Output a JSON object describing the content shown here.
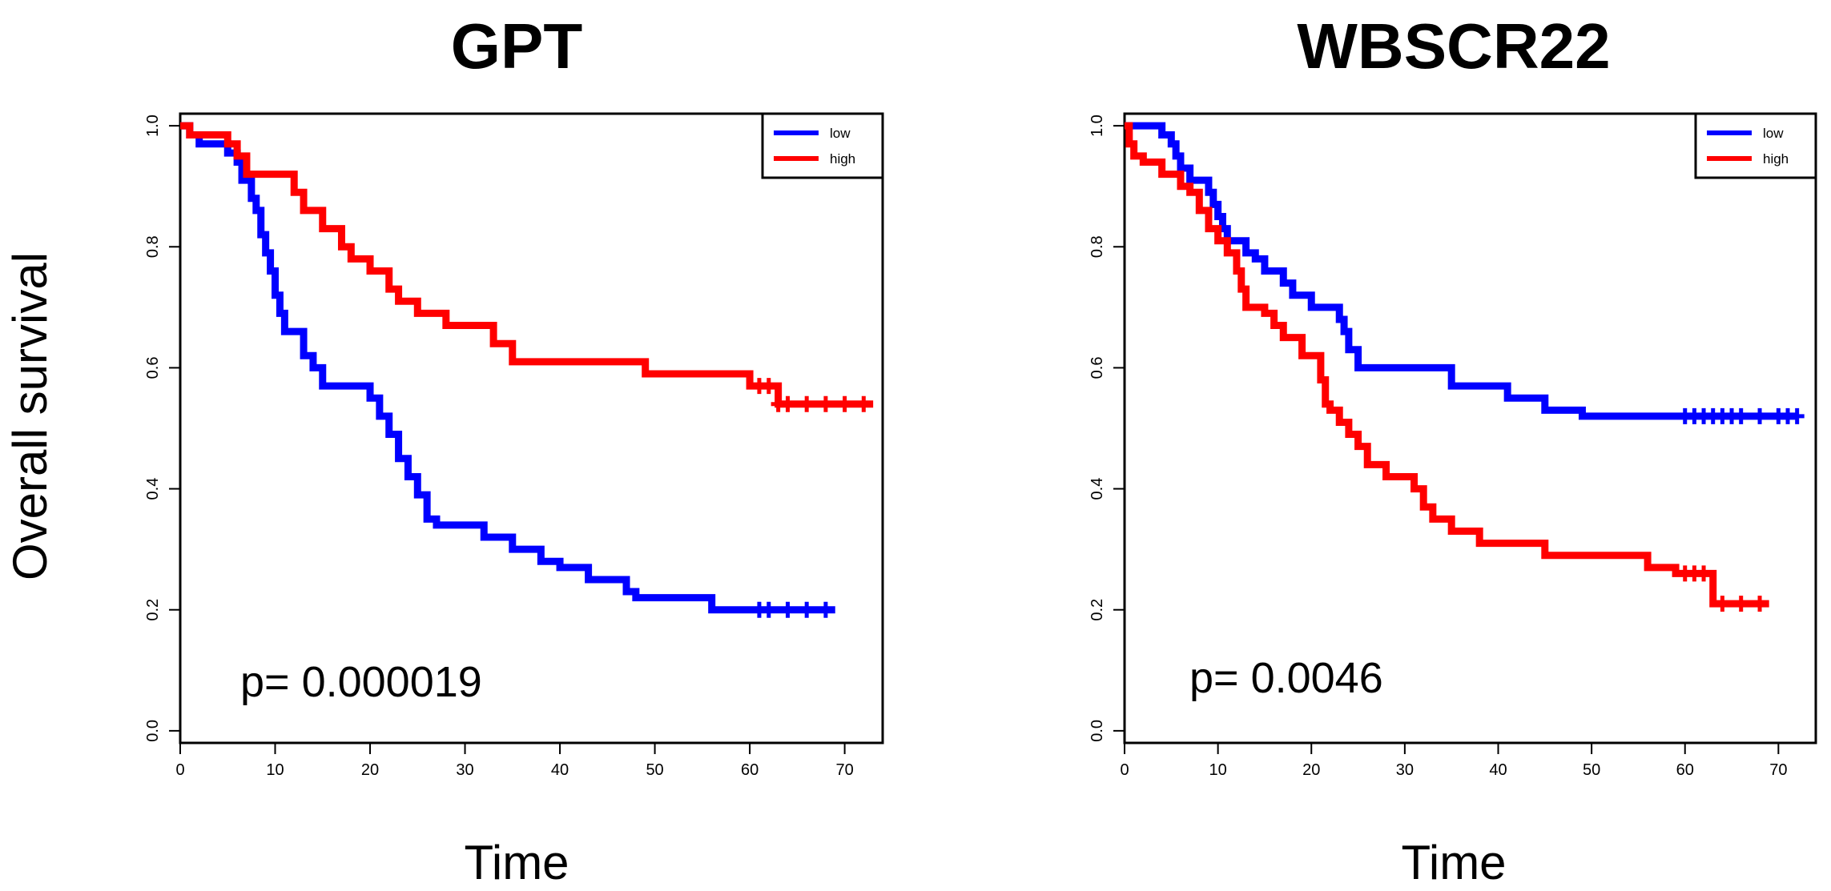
{
  "ylabel": "Overall survival",
  "chart_data": [
    {
      "type": "line",
      "subtype": "kaplan-meier",
      "title": "GPT",
      "xlabel": "Time",
      "ylabel": "Overall survival",
      "xlim": [
        0,
        74
      ],
      "ylim": [
        -0.02,
        1.02
      ],
      "xticks": [
        0,
        10,
        20,
        30,
        40,
        50,
        60,
        70
      ],
      "yticks": [
        0.0,
        0.2,
        0.4,
        0.6,
        0.8,
        1.0
      ],
      "annotation": "p= 0.000019",
      "legend_position": "top-right",
      "series": [
        {
          "name": "low",
          "color": "#0000ff",
          "steps": [
            [
              0,
              1.0
            ],
            [
              1,
              0.985
            ],
            [
              2,
              0.97
            ],
            [
              5,
              0.955
            ],
            [
              6,
              0.94
            ],
            [
              6.5,
              0.91
            ],
            [
              7.5,
              0.88
            ],
            [
              8,
              0.86
            ],
            [
              8.5,
              0.82
            ],
            [
              9,
              0.79
            ],
            [
              9.5,
              0.76
            ],
            [
              10,
              0.72
            ],
            [
              10.5,
              0.69
            ],
            [
              11,
              0.66
            ],
            [
              13,
              0.62
            ],
            [
              14,
              0.6
            ],
            [
              15,
              0.57
            ],
            [
              20,
              0.55
            ],
            [
              21,
              0.52
            ],
            [
              22,
              0.49
            ],
            [
              23,
              0.45
            ],
            [
              24,
              0.42
            ],
            [
              25,
              0.39
            ],
            [
              26,
              0.35
            ],
            [
              27,
              0.34
            ],
            [
              32,
              0.32
            ],
            [
              35,
              0.3
            ],
            [
              38,
              0.28
            ],
            [
              40,
              0.27
            ],
            [
              43,
              0.25
            ],
            [
              47,
              0.23
            ],
            [
              48,
              0.22
            ],
            [
              56,
              0.2
            ],
            [
              69,
              0.2
            ]
          ],
          "censors": [
            61,
            62,
            64,
            66,
            68
          ]
        },
        {
          "name": "high",
          "color": "#ff0000",
          "steps": [
            [
              0,
              1.0
            ],
            [
              1,
              0.985
            ],
            [
              5,
              0.97
            ],
            [
              6,
              0.95
            ],
            [
              7,
              0.92
            ],
            [
              12,
              0.89
            ],
            [
              13,
              0.86
            ],
            [
              15,
              0.83
            ],
            [
              17,
              0.8
            ],
            [
              18,
              0.78
            ],
            [
              20,
              0.76
            ],
            [
              22,
              0.73
            ],
            [
              23,
              0.71
            ],
            [
              25,
              0.69
            ],
            [
              28,
              0.67
            ],
            [
              33,
              0.64
            ],
            [
              35,
              0.61
            ],
            [
              49,
              0.59
            ],
            [
              60,
              0.57
            ],
            [
              63,
              0.54
            ],
            [
              73,
              0.54
            ]
          ],
          "censors": [
            61,
            62,
            63,
            64,
            66,
            68,
            70,
            72
          ]
        }
      ]
    },
    {
      "type": "line",
      "subtype": "kaplan-meier",
      "title": "WBSCR22",
      "xlabel": "Time",
      "ylabel": "",
      "xlim": [
        0,
        74
      ],
      "ylim": [
        -0.02,
        1.02
      ],
      "xticks": [
        0,
        10,
        20,
        30,
        40,
        50,
        60,
        70
      ],
      "yticks": [
        0.0,
        0.2,
        0.4,
        0.6,
        0.8,
        1.0
      ],
      "annotation": "p= 0.0046",
      "legend_position": "top-right",
      "series": [
        {
          "name": "low",
          "color": "#0000ff",
          "steps": [
            [
              0,
              1.0
            ],
            [
              4,
              0.985
            ],
            [
              5,
              0.97
            ],
            [
              5.5,
              0.95
            ],
            [
              6,
              0.93
            ],
            [
              7,
              0.91
            ],
            [
              9,
              0.89
            ],
            [
              9.5,
              0.87
            ],
            [
              10,
              0.85
            ],
            [
              10.5,
              0.83
            ],
            [
              11,
              0.81
            ],
            [
              13,
              0.79
            ],
            [
              14,
              0.78
            ],
            [
              15,
              0.76
            ],
            [
              17,
              0.74
            ],
            [
              18,
              0.72
            ],
            [
              20,
              0.7
            ],
            [
              23,
              0.68
            ],
            [
              23.5,
              0.66
            ],
            [
              24,
              0.63
            ],
            [
              25,
              0.6
            ],
            [
              35,
              0.57
            ],
            [
              41,
              0.55
            ],
            [
              45,
              0.53
            ],
            [
              49,
              0.52
            ],
            [
              72,
              0.52
            ]
          ],
          "censors": [
            60,
            61,
            62,
            63,
            64,
            65,
            66,
            68,
            70,
            71,
            72
          ]
        },
        {
          "name": "high",
          "color": "#ff0000",
          "steps": [
            [
              0,
              1.0
            ],
            [
              0.5,
              0.97
            ],
            [
              1,
              0.95
            ],
            [
              2,
              0.94
            ],
            [
              4,
              0.92
            ],
            [
              6,
              0.9
            ],
            [
              7,
              0.89
            ],
            [
              8,
              0.86
            ],
            [
              9,
              0.83
            ],
            [
              10,
              0.81
            ],
            [
              11,
              0.79
            ],
            [
              12,
              0.76
            ],
            [
              12.5,
              0.73
            ],
            [
              13,
              0.7
            ],
            [
              15,
              0.69
            ],
            [
              16,
              0.67
            ],
            [
              17,
              0.65
            ],
            [
              19,
              0.62
            ],
            [
              21,
              0.58
            ],
            [
              21.5,
              0.54
            ],
            [
              22,
              0.53
            ],
            [
              23,
              0.51
            ],
            [
              24,
              0.49
            ],
            [
              25,
              0.47
            ],
            [
              26,
              0.44
            ],
            [
              28,
              0.42
            ],
            [
              31,
              0.4
            ],
            [
              32,
              0.37
            ],
            [
              33,
              0.35
            ],
            [
              35,
              0.33
            ],
            [
              38,
              0.31
            ],
            [
              45,
              0.29
            ],
            [
              56,
              0.27
            ],
            [
              59,
              0.26
            ],
            [
              63,
              0.21
            ],
            [
              69,
              0.21
            ]
          ],
          "censors": [
            60,
            61,
            62,
            64,
            66,
            68
          ]
        }
      ]
    }
  ]
}
